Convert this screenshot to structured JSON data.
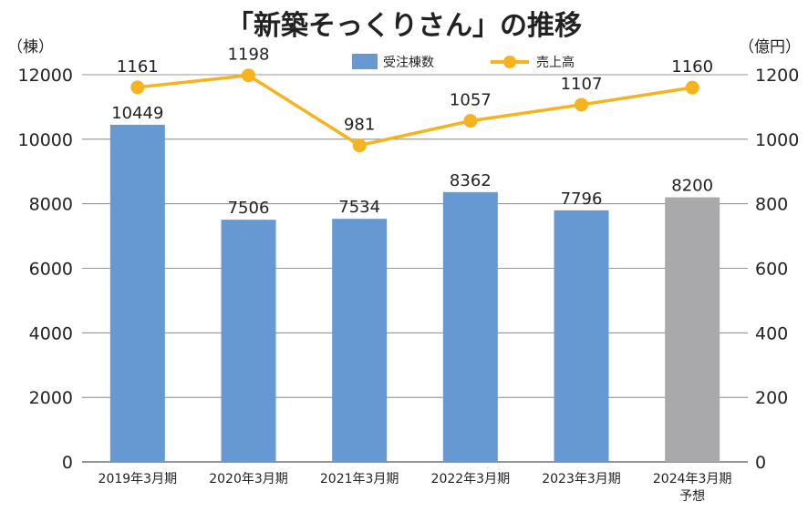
{
  "chart_data": {
    "type": "bar",
    "title": "「新築そっくりさん」の推移",
    "y_left_unit": "（棟）",
    "y_right_unit": "（億円）",
    "y_left_lim": [
      0,
      12000
    ],
    "y_right_lim": [
      0,
      1200
    ],
    "y_left_ticks": [
      "0",
      "2000",
      "4000",
      "6000",
      "8000",
      "10000",
      "12000"
    ],
    "y_right_ticks": [
      "0",
      "200",
      "400",
      "600",
      "800",
      "1000",
      "1200"
    ],
    "grid": true,
    "legend_position": "top-center",
    "categories": [
      "2019年3月期",
      "2020年3月期",
      "2021年3月期",
      "2022年3月期",
      "2023年3月期",
      "2024年3月期"
    ],
    "category_notes": [
      "",
      "",
      "",
      "",
      "",
      "予想"
    ],
    "series": [
      {
        "name": "受注棟数",
        "type": "bar",
        "axis": "left",
        "color": "#6699d2",
        "forecast_color": "#a9a9ab",
        "values": [
          10449,
          7506,
          7534,
          8362,
          7796,
          8200
        ],
        "labels": [
          "10449",
          "7506",
          "7534",
          "8362",
          "7796",
          "8200"
        ]
      },
      {
        "name": "売上高",
        "type": "line",
        "axis": "right",
        "color": "#f5b31e",
        "values": [
          1161,
          1198,
          981,
          1057,
          1107,
          1160
        ],
        "labels": [
          "1161",
          "1198",
          "981",
          "1057",
          "1107",
          "1160"
        ]
      }
    ]
  }
}
